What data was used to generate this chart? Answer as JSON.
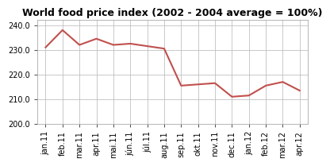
{
  "title": "World food price index (2002 - 2004 average = 100%)",
  "x_labels": [
    "jan.11",
    "feb.11",
    "mar.11",
    "apr.11",
    "mai.11",
    "jún.11",
    "júl.11",
    "aug.11",
    "sep.11",
    "okt.11",
    "nov.11",
    "dec.11",
    "jan.12",
    "feb.12",
    "mar.12",
    "apr.12"
  ],
  "values": [
    231.0,
    238.0,
    232.0,
    234.5,
    232.0,
    232.5,
    231.5,
    230.5,
    215.5,
    216.0,
    216.5,
    211.0,
    211.5,
    215.5,
    217.0,
    213.5
  ],
  "line_color": "#c0504d",
  "ylim": [
    200.0,
    242.0
  ],
  "yticks": [
    200.0,
    210.0,
    220.0,
    230.0,
    240.0
  ],
  "background_color": "#ffffff",
  "grid_color": "#c0c0c0",
  "title_fontsize": 9,
  "tick_fontsize": 7
}
